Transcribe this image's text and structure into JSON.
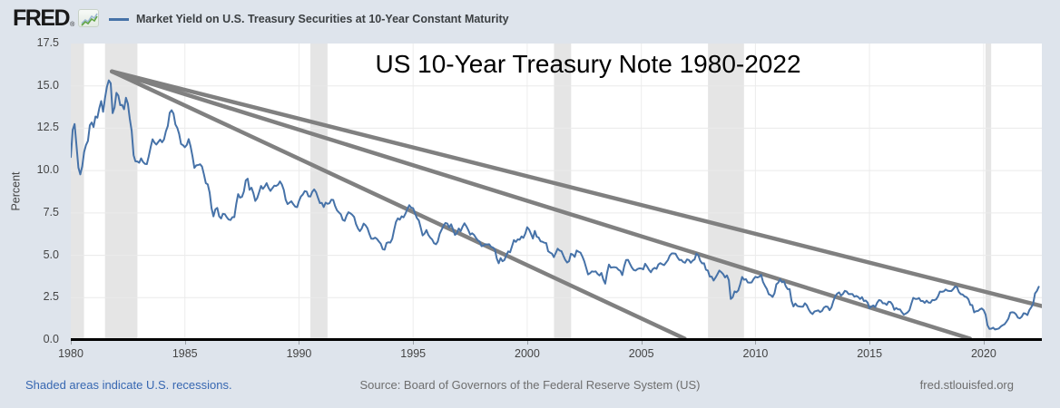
{
  "header": {
    "logo_text": "FRED",
    "logo_reg": "®",
    "legend_label": "Market Yield on U.S. Treasury Securities at 10-Year Constant Maturity",
    "legend_color": "#4672a8"
  },
  "footer": {
    "recessions_note": "Shaded areas indicate U.S. recessions.",
    "source": "Source: Board of Governors of the Federal Reserve System (US)",
    "site": "fred.stlouisfed.org"
  },
  "chart_data": {
    "type": "line",
    "title": "US 10-Year Treasury Note 1980-2022",
    "xlabel": "",
    "ylabel": "Percent",
    "xlim": [
      1980,
      2022.55
    ],
    "ylim": [
      0,
      17.5
    ],
    "x_ticks": [
      1980,
      1985,
      1990,
      1995,
      2000,
      2005,
      2010,
      2015,
      2020
    ],
    "y_ticks": [
      0.0,
      2.5,
      5.0,
      7.5,
      10.0,
      12.5,
      15.0,
      17.5
    ],
    "grid": true,
    "legend_position": "top-left-header",
    "colors": {
      "line": "#4672a8",
      "trend": "#808080",
      "recession": "#e5e5e5",
      "grid_h": "#eaeaea",
      "grid_v": "#ececec",
      "axis": "#000000"
    },
    "recessions": [
      [
        1980.0,
        1980.58
      ],
      [
        1981.5,
        1982.92
      ],
      [
        1990.5,
        1991.25
      ],
      [
        2001.17,
        2001.92
      ],
      [
        2007.92,
        2009.5
      ],
      [
        2020.08,
        2020.33
      ]
    ],
    "trend_lines": [
      {
        "name": "shallow-trendline",
        "from": [
          1981.8,
          15.85
        ],
        "to": [
          2022.55,
          2.0
        ]
      },
      {
        "name": "middle-trendline",
        "from": [
          1981.8,
          15.85
        ],
        "to": [
          2019.4,
          0.08
        ]
      },
      {
        "name": "steep-trendline",
        "from": [
          1981.8,
          15.85
        ],
        "to": [
          2006.9,
          0.08
        ]
      }
    ],
    "series": [
      {
        "name": "Market Yield on U.S. Treasury Securities at 10-Year Constant Maturity",
        "units": "Percent",
        "start_year": 1980.0,
        "interval_months": 1,
        "values": [
          10.8,
          12.41,
          12.75,
          11.47,
          10.18,
          9.78,
          10.25,
          11.1,
          11.51,
          11.75,
          12.68,
          12.84,
          12.57,
          13.19,
          13.12,
          13.68,
          14.1,
          13.47,
          14.28,
          14.94,
          15.32,
          15.15,
          13.39,
          13.72,
          14.59,
          14.43,
          13.86,
          13.87,
          13.62,
          14.3,
          13.95,
          13.06,
          12.34,
          10.91,
          10.55,
          10.54,
          10.46,
          10.72,
          10.51,
          10.4,
          10.38,
          10.85,
          11.38,
          11.85,
          11.65,
          11.54,
          11.69,
          11.83,
          11.67,
          11.84,
          12.32,
          12.63,
          13.41,
          13.56,
          13.36,
          12.72,
          12.52,
          12.16,
          11.57,
          11.5,
          11.38,
          11.51,
          11.86,
          11.43,
          10.85,
          10.16,
          10.31,
          10.33,
          10.37,
          10.24,
          9.78,
          9.26,
          9.19,
          8.7,
          7.78,
          7.3,
          7.71,
          7.8,
          7.3,
          7.17,
          7.45,
          7.43,
          7.25,
          7.11,
          7.08,
          7.25,
          7.25,
          8.02,
          8.61,
          8.4,
          8.45,
          8.76,
          9.42,
          9.52,
          8.86,
          8.99,
          8.67,
          8.21,
          8.37,
          8.72,
          9.09,
          8.92,
          9.06,
          9.26,
          8.98,
          8.8,
          8.96,
          9.11,
          9.09,
          9.17,
          9.36,
          9.18,
          8.86,
          8.28,
          8.02,
          8.11,
          8.19,
          8.01,
          7.87,
          7.84,
          8.21,
          8.47,
          8.59,
          8.79,
          8.76,
          8.48,
          8.47,
          8.75,
          8.89,
          8.72,
          8.39,
          8.08,
          8.09,
          7.85,
          8.11,
          8.04,
          8.07,
          8.28,
          8.27,
          7.9,
          7.65,
          7.53,
          7.42,
          7.09,
          7.03,
          7.34,
          7.54,
          7.48,
          7.39,
          7.26,
          6.84,
          6.59,
          6.42,
          6.59,
          6.87,
          6.77,
          6.6,
          6.26,
          5.98,
          5.97,
          6.04,
          5.96,
          5.81,
          5.68,
          5.36,
          5.33,
          5.72,
          5.77,
          5.75,
          5.97,
          6.48,
          6.97,
          7.18,
          7.1,
          7.3,
          7.24,
          7.46,
          7.74,
          7.96,
          7.81,
          7.78,
          7.47,
          7.2,
          7.06,
          6.63,
          6.17,
          6.28,
          6.49,
          6.2,
          6.04,
          5.93,
          5.71,
          5.65,
          5.81,
          6.27,
          6.51,
          6.74,
          6.91,
          6.87,
          6.64,
          6.83,
          6.53,
          6.2,
          6.3,
          6.58,
          6.42,
          6.69,
          6.89,
          6.71,
          6.49,
          6.22,
          6.3,
          6.21,
          6.03,
          5.88,
          5.81,
          5.54,
          5.57,
          5.65,
          5.64,
          5.65,
          5.5,
          5.46,
          5.34,
          4.81,
          4.53,
          4.83,
          4.65,
          4.72,
          5.0,
          5.23,
          5.18,
          5.54,
          5.9,
          5.79,
          5.94,
          5.92,
          6.11,
          6.03,
          6.28,
          6.66,
          6.52,
          6.26,
          5.99,
          6.44,
          6.1,
          6.05,
          5.83,
          5.8,
          5.74,
          5.72,
          5.24,
          5.16,
          5.1,
          4.89,
          5.14,
          5.39,
          5.28,
          5.24,
          4.97,
          4.73,
          4.57,
          4.65,
          5.09,
          5.04,
          4.91,
          5.28,
          5.21,
          5.16,
          4.93,
          4.65,
          4.26,
          3.87,
          3.94,
          4.05,
          4.03,
          4.05,
          3.9,
          3.81,
          3.96,
          3.57,
          3.33,
          3.98,
          4.45,
          4.27,
          4.29,
          4.3,
          4.27,
          4.15,
          4.08,
          3.83,
          4.35,
          4.72,
          4.73,
          4.5,
          4.28,
          4.13,
          4.1,
          4.19,
          4.23,
          4.22,
          4.17,
          4.5,
          4.34,
          4.14,
          4.0,
          4.18,
          4.26,
          4.2,
          4.46,
          4.54,
          4.47,
          4.42,
          4.57,
          4.72,
          4.99,
          5.11,
          5.11,
          5.09,
          4.88,
          4.72,
          4.73,
          4.6,
          4.56,
          4.76,
          4.72,
          4.56,
          4.69,
          4.75,
          5.1,
          5.0,
          4.67,
          4.52,
          4.53,
          4.15,
          4.1,
          3.74,
          3.74,
          3.51,
          3.68,
          3.88,
          4.1,
          4.01,
          3.89,
          3.69,
          3.81,
          3.53,
          2.42,
          2.52,
          2.87,
          2.82,
          2.93,
          3.29,
          3.72,
          3.56,
          3.59,
          3.4,
          3.39,
          3.4,
          3.59,
          3.73,
          3.69,
          3.73,
          3.85,
          3.42,
          3.2,
          3.01,
          2.7,
          2.65,
          2.54,
          2.76,
          3.29,
          3.39,
          3.58,
          3.41,
          3.46,
          3.17,
          3.0,
          3.0,
          2.3,
          1.98,
          2.15,
          2.01,
          1.98,
          1.97,
          1.97,
          2.17,
          2.05,
          1.8,
          1.62,
          1.53,
          1.68,
          1.72,
          1.75,
          1.65,
          1.72,
          1.91,
          1.98,
          1.96,
          1.76,
          1.93,
          2.3,
          2.58,
          2.74,
          2.81,
          2.62,
          2.72,
          2.9,
          2.86,
          2.71,
          2.72,
          2.71,
          2.56,
          2.6,
          2.54,
          2.42,
          2.53,
          2.3,
          2.33,
          2.21,
          1.88,
          1.98,
          2.04,
          1.94,
          2.2,
          2.36,
          2.32,
          2.17,
          2.17,
          2.07,
          2.26,
          2.24,
          2.09,
          1.78,
          1.89,
          1.81,
          1.81,
          1.64,
          1.5,
          1.56,
          1.63,
          1.76,
          2.14,
          2.49,
          2.43,
          2.42,
          2.48,
          2.3,
          2.3,
          2.19,
          2.32,
          2.21,
          2.2,
          2.36,
          2.35,
          2.4,
          2.58,
          2.86,
          2.84,
          2.87,
          2.98,
          2.91,
          2.89,
          2.89,
          3.0,
          3.15,
          3.12,
          2.83,
          2.71,
          2.68,
          2.57,
          2.53,
          2.4,
          2.07,
          2.06,
          1.63,
          1.7,
          1.71,
          1.81,
          1.86,
          1.76,
          1.5,
          0.87,
          0.66,
          0.67,
          0.73,
          0.62,
          0.65,
          0.68,
          0.79,
          0.87,
          0.93,
          1.08,
          1.26,
          1.61,
          1.64,
          1.62,
          1.52,
          1.32,
          1.28,
          1.37,
          1.58,
          1.56,
          1.47,
          1.76,
          1.93,
          2.13,
          2.75,
          2.9,
          3.14
        ]
      }
    ]
  }
}
